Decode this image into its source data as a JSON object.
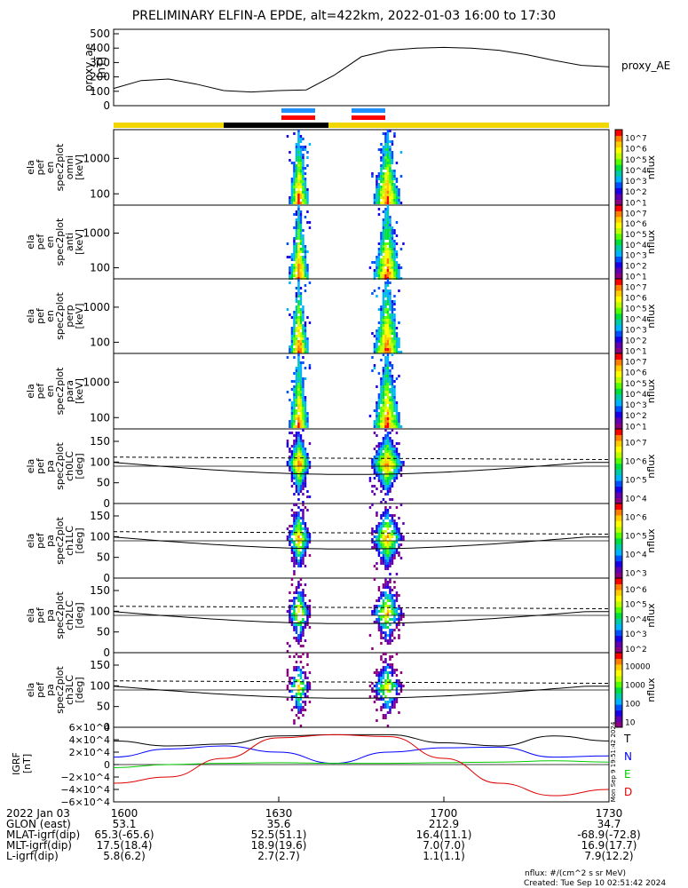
{
  "title": "PRELIMINARY ELFIN-A EPDE, alt=422km, 2022-01-03 16:00 to 17:30",
  "panels": [
    {
      "ylabel": [
        "proxy_ae",
        "[nT]"
      ],
      "right_label": "proxy_AE"
    },
    {
      "ylabel": [
        "ela",
        "pef",
        "en",
        "spec2plot",
        "omni",
        "[keV]"
      ],
      "right_label": "nflux"
    },
    {
      "ylabel": [
        "ela",
        "pef",
        "en",
        "spec2plot",
        "anti",
        "[keV]"
      ],
      "right_label": "nflux"
    },
    {
      "ylabel": [
        "ela",
        "pef",
        "en",
        "spec2plot",
        "perp",
        "[keV]"
      ],
      "right_label": "nflux"
    },
    {
      "ylabel": [
        "ela",
        "pef",
        "en",
        "spec2plot",
        "para",
        "[keV]"
      ],
      "right_label": "nflux"
    },
    {
      "ylabel": [
        "ela",
        "pef",
        "pa",
        "spec2plot",
        "ch0LC",
        "[deg]"
      ],
      "right_label": "nflux"
    },
    {
      "ylabel": [
        "ela",
        "pef",
        "pa",
        "spec2plot",
        "ch1LC",
        "[deg]"
      ],
      "right_label": "nflux"
    },
    {
      "ylabel": [
        "ela",
        "pef",
        "pa",
        "spec2plot",
        "ch2LC",
        "[deg]"
      ],
      "right_label": "nflux"
    },
    {
      "ylabel": [
        "ela",
        "pef",
        "pa",
        "spec2plot",
        "ch3LC",
        "[deg]"
      ],
      "right_label": "nflux"
    },
    {
      "ylabel": [
        "IGRF",
        "[nT]"
      ],
      "right_label": ""
    }
  ],
  "igrf_legend": [
    "T",
    "N",
    "E",
    "D"
  ],
  "bottom_axis": {
    "times": [
      "1600",
      "1630",
      "1700",
      "1730"
    ],
    "rows": [
      {
        "label": "2022 Jan 03",
        "values": [
          "1600",
          "1630",
          "1700",
          "1730"
        ]
      },
      {
        "label": "GLON (east)",
        "values": [
          "53.1",
          "35.6",
          "212.9",
          "34.7"
        ]
      },
      {
        "label": "MLAT-igrf(dip)",
        "values": [
          "65.3(-65.6)",
          "52.5(51.1)",
          "16.4(11.1)",
          "-68.9(-72.8)"
        ]
      },
      {
        "label": "MLT-igrf(dip)",
        "values": [
          "17.5(18.4)",
          "18.9(19.6)",
          "7.0(7.0)",
          "16.9(17.7)"
        ]
      },
      {
        "label": "L-igrf(dip)",
        "values": [
          "5.8(6.2)",
          "2.7(2.7)",
          "1.1(1.1)",
          "7.9(12.2)"
        ]
      }
    ]
  },
  "footer": {
    "units": "nflux: #/(cm^2 s sr MeV)",
    "created": "Created: Tue Sep 10 02:51:42 2024",
    "side_stamp": "Mon Sep  9 19:51:42 2024"
  },
  "colors": {
    "colorbar": [
      "#ff0000",
      "#ff7f00",
      "#ffcc00",
      "#ffff00",
      "#bfff00",
      "#55ff00",
      "#00e03a",
      "#00ccaa",
      "#00b4ff",
      "#0050ff",
      "#1a00e6",
      "#6000b0",
      "#8a0080"
    ],
    "sci_bar_yellow": "#f2d600",
    "sci_bar_black": "#000000",
    "zone_blue": "#1e90ff",
    "zone_red": "#ff0000",
    "igrf_T": "#000000",
    "igrf_N": "#0000ff",
    "igrf_E": "#00cc00",
    "igrf_D": "#dd0000"
  },
  "chart_data": [
    {
      "type": "line",
      "panel": "proxy_ae",
      "x": [
        "16:00",
        "16:05",
        "16:10",
        "16:15",
        "16:20",
        "16:25",
        "16:30",
        "16:35",
        "16:40",
        "16:45",
        "16:50",
        "16:55",
        "17:00",
        "17:05",
        "17:10",
        "17:15",
        "17:20",
        "17:25",
        "17:30"
      ],
      "values": [
        120,
        175,
        185,
        150,
        105,
        95,
        105,
        110,
        210,
        340,
        385,
        400,
        405,
        400,
        385,
        355,
        315,
        280,
        270
      ],
      "ylim": [
        0,
        500
      ],
      "yticks": [
        "0",
        "100",
        "200",
        "300",
        "400",
        "500"
      ]
    },
    {
      "type": "heatmap",
      "panels": [
        "omni",
        "anti",
        "perp",
        "para"
      ],
      "yscale": "log",
      "yticks": [
        "100",
        "1000"
      ],
      "colorbar_ticks": [
        "10^1",
        "10^2",
        "10^3",
        "10^4",
        "10^5",
        "10^6",
        "10^7"
      ],
      "bursts": [
        {
          "start": "16:31",
          "end": "16:36"
        },
        {
          "start": "16:46",
          "end": "16:53"
        }
      ]
    },
    {
      "type": "heatmap",
      "panels": [
        "ch0LC",
        "ch1LC",
        "ch2LC",
        "ch3LC"
      ],
      "ylim": [
        0,
        180
      ],
      "yticks": [
        "0",
        "50",
        "100",
        "150"
      ],
      "colorbar_ticks": [
        [
          "10^4",
          "10^5",
          "10^6",
          "10^7"
        ],
        [
          "10^3",
          "10^4",
          "10^5",
          "10^6"
        ],
        [
          "10^2",
          "10^3",
          "10^4",
          "10^5",
          "10^6"
        ],
        [
          "10",
          "100",
          "1000",
          "10000"
        ]
      ]
    },
    {
      "type": "line",
      "panel": "IGRF",
      "ylim": [
        -60000,
        60000
      ],
      "yticks": [
        "6×10^4",
        "4×10^4",
        "2×10^4",
        "0",
        "−2×10^4",
        "−4×10^4",
        "−6×10^4"
      ],
      "x": [
        "16:00",
        "16:10",
        "16:20",
        "16:30",
        "16:40",
        "16:50",
        "17:00",
        "17:10",
        "17:20",
        "17:30"
      ],
      "series": [
        {
          "name": "T",
          "values": [
            38000,
            30000,
            33000,
            46000,
            48000,
            48000,
            35000,
            30000,
            46000,
            38000
          ]
        },
        {
          "name": "N",
          "values": [
            12000,
            25000,
            30000,
            20000,
            2000,
            20000,
            27000,
            28000,
            12000,
            14000
          ]
        },
        {
          "name": "E",
          "values": [
            -5000,
            0,
            2000,
            3000,
            2000,
            2000,
            3000,
            4000,
            6000,
            4000
          ]
        },
        {
          "name": "D",
          "values": [
            -30000,
            -20000,
            10000,
            43000,
            48000,
            45000,
            10000,
            -30000,
            -50000,
            -40000
          ]
        }
      ]
    }
  ]
}
